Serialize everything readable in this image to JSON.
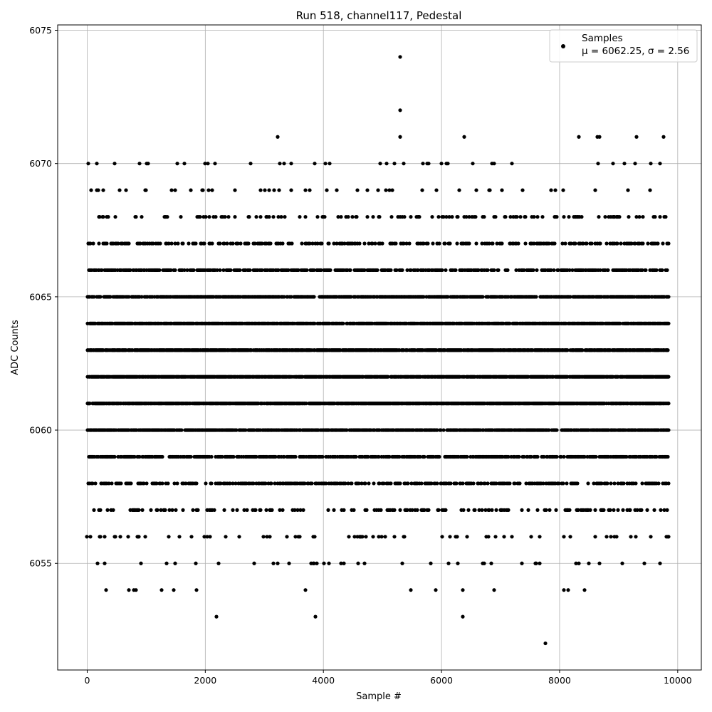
{
  "chart_data": {
    "type": "scatter",
    "title": "Run 518, channel117, Pedestal",
    "xlabel": "Sample #",
    "ylabel": "ADC Counts",
    "xlim": [
      -500,
      10400
    ],
    "ylim": [
      6051,
      6075.2
    ],
    "xticks": [
      0,
      2000,
      4000,
      6000,
      8000,
      10000
    ],
    "yticks": [
      6055,
      6060,
      6065,
      6070,
      6075
    ],
    "grid": true,
    "legend_position": "top-right",
    "legend": [
      {
        "label": "Samples",
        "color": "#000000",
        "marker": "circle"
      },
      {
        "label": "μ = 6062.25, σ = 2.56"
      }
    ],
    "series": [
      {
        "name": "Samples",
        "color": "#000000",
        "n_samples": 9850,
        "mean": 6062.25,
        "std": 2.56,
        "x_range": [
          0,
          9849
        ],
        "outliers": [
          {
            "x": 5300,
            "y": 6074
          },
          {
            "x": 5295,
            "y": 6072
          },
          {
            "x": 5305,
            "y": 6071
          },
          {
            "x": 3220,
            "y": 6071
          },
          {
            "x": 6380,
            "y": 6071
          },
          {
            "x": 8330,
            "y": 6071
          },
          {
            "x": 8640,
            "y": 6071
          },
          {
            "x": 8680,
            "y": 6071
          },
          {
            "x": 9300,
            "y": 6071
          },
          {
            "x": 9760,
            "y": 6071
          },
          {
            "x": 20,
            "y": 6070
          },
          {
            "x": 160,
            "y": 6070
          },
          {
            "x": 1520,
            "y": 6070
          },
          {
            "x": 1990,
            "y": 6070
          },
          {
            "x": 3460,
            "y": 6070
          },
          {
            "x": 4030,
            "y": 6070
          },
          {
            "x": 4100,
            "y": 6070
          },
          {
            "x": 5200,
            "y": 6070
          },
          {
            "x": 5360,
            "y": 6070
          },
          {
            "x": 5780,
            "y": 6070
          },
          {
            "x": 6000,
            "y": 6070
          },
          {
            "x": 6080,
            "y": 6070
          },
          {
            "x": 6110,
            "y": 6070
          },
          {
            "x": 6890,
            "y": 6070
          },
          {
            "x": 8650,
            "y": 6070
          },
          {
            "x": 700,
            "y": 6054
          },
          {
            "x": 790,
            "y": 6054
          },
          {
            "x": 830,
            "y": 6054
          },
          {
            "x": 1460,
            "y": 6054
          },
          {
            "x": 8070,
            "y": 6054
          },
          {
            "x": 8150,
            "y": 6054
          },
          {
            "x": 3870,
            "y": 6053
          },
          {
            "x": 7760,
            "y": 6052
          }
        ]
      }
    ]
  }
}
